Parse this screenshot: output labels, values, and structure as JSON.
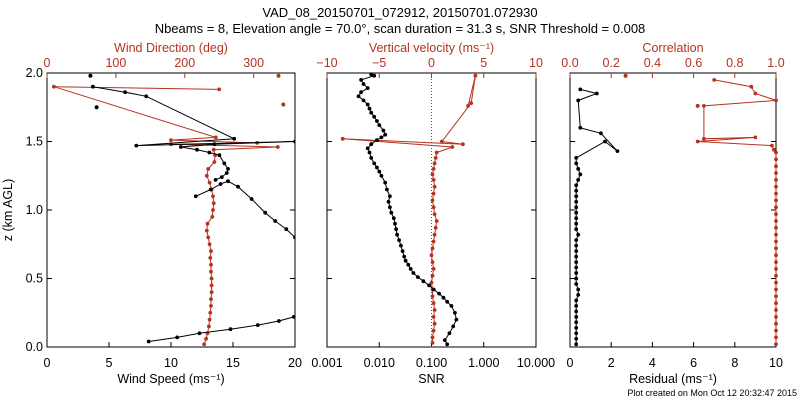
{
  "title_line1": "VAD_08_20150701_072912, 20150701.072930",
  "title_line2": "Nbeams = 8, Elevation angle = 70.0°, scan duration = 31.3 s, SNR Threshold = 0.008",
  "footer": "Plot created on Mon Oct 12 20:32:47 2015",
  "colors": {
    "black": "#000000",
    "red": "#b5331f",
    "axis": "#000000"
  },
  "chart_data": [
    {
      "type": "line",
      "ylabel": "z (km AGL)",
      "ylim": [
        0,
        2
      ],
      "yticks": [
        "0.0",
        "0.5",
        "1.0",
        "1.5",
        "2.0"
      ],
      "xlabel": "Wind Speed (ms⁻¹)",
      "xlim": [
        0,
        20
      ],
      "xticks": [
        "0",
        "5",
        "10",
        "15",
        "20"
      ],
      "top_xlabel": "Wind Direction (deg)",
      "top_xlim": [
        0,
        360
      ],
      "top_xticks": [
        "0",
        "100",
        "200",
        "300"
      ],
      "series": [
        {
          "color": "black",
          "axis": "bottom",
          "x": [
            8.2,
            10.5,
            12.3,
            14.8,
            17.0,
            18.7,
            19.9
          ],
          "y": [
            0.04,
            0.07,
            0.1,
            0.13,
            0.16,
            0.19,
            0.22
          ]
        },
        {
          "color": "black",
          "axis": "bottom",
          "x": [
            12.0,
            13.2,
            14.0,
            14.6,
            15.4,
            16.5,
            17.6,
            18.4,
            19.3,
            20.0
          ],
          "y": [
            1.1,
            1.15,
            1.19,
            1.21,
            1.17,
            1.08,
            0.98,
            0.92,
            0.86,
            0.8
          ]
        },
        {
          "color": "black",
          "axis": "bottom",
          "x": [
            13.6,
            14.1,
            14.5,
            14.6,
            14.3,
            13.9,
            13.1,
            12.1,
            10.8,
            13.5,
            20.0,
            7.2,
            15.1,
            8.0,
            6.3,
            3.7
          ],
          "y": [
            1.22,
            1.24,
            1.27,
            1.3,
            1.34,
            1.4,
            1.42,
            1.44,
            1.46,
            1.48,
            1.5,
            1.47,
            1.52,
            1.83,
            1.86,
            1.9
          ]
        }
      ],
      "markers": [
        {
          "color": "black",
          "axis": "bottom",
          "x": [
            3.5,
            4.0
          ],
          "y": [
            1.98,
            1.75
          ]
        },
        {
          "color": "red",
          "axis": "top",
          "x": [
            336,
            343
          ],
          "y": [
            1.98,
            1.77
          ]
        }
      ],
      "red_series": {
        "color": "red",
        "axis": "top",
        "x": [
          228,
          231,
          233,
          235,
          236,
          237,
          238,
          238,
          239,
          239,
          239,
          238,
          238,
          237,
          238,
          236,
          234,
          232,
          233,
          240,
          241,
          242,
          241,
          239,
          236,
          232,
          234,
          243,
          244,
          242,
          335,
          180,
          305,
          180,
          245,
          10,
          250
        ],
        "y": [
          0.02,
          0.06,
          0.1,
          0.15,
          0.2,
          0.25,
          0.3,
          0.35,
          0.4,
          0.45,
          0.5,
          0.55,
          0.6,
          0.65,
          0.7,
          0.75,
          0.8,
          0.85,
          0.9,
          0.95,
          1.0,
          1.05,
          1.1,
          1.15,
          1.2,
          1.25,
          1.3,
          1.35,
          1.4,
          1.44,
          1.46,
          1.48,
          1.49,
          1.51,
          1.53,
          1.9,
          1.88
        ]
      }
    },
    {
      "type": "line",
      "xlabel": "SNR",
      "xscale": "log",
      "xlim": [
        0.001,
        10
      ],
      "xticks": [
        "0.001",
        "0.010",
        "0.100",
        "1.000",
        "10.000"
      ],
      "top_xlabel": "Vertical velocity (ms⁻¹)",
      "top_xlim": [
        -10,
        10
      ],
      "top_xticks": [
        "−10",
        "−5",
        "0",
        "5",
        "10"
      ],
      "ylim": [
        0,
        2
      ],
      "snr": {
        "color": "black",
        "x": [
          0.2,
          0.18,
          0.22,
          0.26,
          0.3,
          0.28,
          0.24,
          0.2,
          0.17,
          0.14,
          0.11,
          0.09,
          0.07,
          0.055,
          0.045,
          0.04,
          0.036,
          0.032,
          0.03,
          0.028,
          0.026,
          0.024,
          0.022,
          0.021,
          0.02,
          0.019,
          0.017,
          0.016,
          0.015,
          0.016,
          0.014,
          0.013,
          0.011,
          0.01,
          0.009,
          0.008,
          0.007,
          0.0065,
          0.006,
          0.007,
          0.009,
          0.011,
          0.013,
          0.012,
          0.01,
          0.009,
          0.008,
          0.007,
          0.0065,
          0.006,
          0.005,
          0.004,
          0.0045,
          0.006,
          0.005,
          0.0045,
          0.008,
          0.007
        ],
        "y": [
          0.02,
          0.05,
          0.1,
          0.15,
          0.2,
          0.25,
          0.3,
          0.33,
          0.36,
          0.39,
          0.42,
          0.45,
          0.48,
          0.51,
          0.54,
          0.57,
          0.6,
          0.63,
          0.66,
          0.7,
          0.74,
          0.78,
          0.82,
          0.86,
          0.9,
          0.94,
          0.98,
          1.02,
          1.06,
          1.1,
          1.15,
          1.2,
          1.25,
          1.28,
          1.31,
          1.34,
          1.38,
          1.42,
          1.45,
          1.48,
          1.51,
          1.53,
          1.55,
          1.58,
          1.62,
          1.65,
          1.68,
          1.71,
          1.74,
          1.77,
          1.8,
          1.83,
          1.86,
          1.89,
          1.92,
          1.95,
          1.98,
          1.99
        ]
      },
      "w": {
        "color": "red",
        "axis": "top",
        "x": [
          0.1,
          0.1,
          0.2,
          0.3,
          0.2,
          0.3,
          0.2,
          0.1,
          0.1,
          0.0,
          0.1,
          0.2,
          0.1,
          0.0,
          0.1,
          0.2,
          0.3,
          0.4,
          0.5,
          0.3,
          0.2,
          0.1,
          0.2,
          0.3,
          0.2,
          0.1,
          0.2,
          0.3,
          0.4,
          0.5,
          2.0,
          -8.5,
          3.0,
          1.0,
          3.8,
          4.2,
          3.5
        ],
        "y": [
          0.03,
          0.07,
          0.12,
          0.17,
          0.22,
          0.27,
          0.32,
          0.37,
          0.42,
          0.47,
          0.52,
          0.57,
          0.62,
          0.67,
          0.72,
          0.77,
          0.82,
          0.87,
          0.92,
          0.97,
          1.02,
          1.07,
          1.12,
          1.17,
          1.22,
          1.26,
          1.3,
          1.34,
          1.38,
          1.42,
          1.46,
          1.52,
          1.48,
          1.5,
          1.78,
          1.98,
          1.76
        ]
      }
    },
    {
      "type": "line",
      "xlabel": "Residual (ms⁻¹)",
      "xlim": [
        0,
        10
      ],
      "xticks": [
        "0",
        "2",
        "4",
        "6",
        "8",
        "10"
      ],
      "top_xlabel": "Correlation",
      "top_xlim": [
        0,
        1
      ],
      "top_xticks": [
        "0.0",
        "0.2",
        "0.4",
        "0.6",
        "0.8",
        "1.0"
      ],
      "ylim": [
        0,
        2
      ],
      "residual": {
        "color": "black",
        "x": [
          0.3,
          0.3,
          0.3,
          0.3,
          0.3,
          0.3,
          0.3,
          0.3,
          0.3,
          0.4,
          0.4,
          0.3,
          0.3,
          0.3,
          0.3,
          0.3,
          0.3,
          0.3,
          0.3,
          0.3,
          0.4,
          0.3,
          0.3,
          0.3,
          0.3,
          0.3,
          0.3,
          0.3,
          0.3,
          0.3,
          0.4,
          0.5,
          0.4,
          0.3,
          0.3,
          1.7,
          2.3,
          1.5,
          0.5,
          0.4,
          1.3,
          0.5
        ],
        "y": [
          0.02,
          0.06,
          0.1,
          0.14,
          0.18,
          0.22,
          0.26,
          0.3,
          0.34,
          0.38,
          0.42,
          0.46,
          0.5,
          0.54,
          0.58,
          0.62,
          0.66,
          0.7,
          0.74,
          0.78,
          0.82,
          0.86,
          0.9,
          0.94,
          0.98,
          1.02,
          1.06,
          1.1,
          1.14,
          1.18,
          1.22,
          1.26,
          1.3,
          1.34,
          1.38,
          1.5,
          1.43,
          1.56,
          1.6,
          1.8,
          1.85,
          1.88
        ]
      },
      "correlation": {
        "color": "red",
        "axis": "top",
        "x": [
          1.0,
          1.0,
          1.0,
          1.0,
          1.0,
          1.0,
          1.0,
          1.0,
          1.0,
          1.0,
          1.0,
          1.0,
          1.0,
          1.0,
          1.0,
          1.0,
          1.0,
          1.0,
          1.0,
          1.0,
          1.0,
          1.0,
          1.0,
          1.0,
          1.0,
          1.0,
          1.0,
          1.0,
          1.0,
          0.99,
          0.98,
          0.62,
          0.9,
          0.65,
          0.65,
          1.0,
          0.9,
          0.88,
          0.7
        ],
        "y": [
          0.02,
          0.07,
          0.12,
          0.17,
          0.22,
          0.27,
          0.32,
          0.37,
          0.42,
          0.47,
          0.52,
          0.57,
          0.62,
          0.67,
          0.72,
          0.77,
          0.82,
          0.87,
          0.92,
          0.97,
          1.02,
          1.07,
          1.12,
          1.17,
          1.22,
          1.27,
          1.32,
          1.37,
          1.42,
          1.44,
          1.47,
          1.5,
          1.53,
          1.52,
          1.76,
          1.8,
          1.85,
          1.9,
          1.95
        ]
      },
      "markers": [
        {
          "color": "red",
          "axis": "top",
          "x": [
            0.27,
            0.62
          ],
          "y": [
            1.98,
            1.76
          ]
        }
      ]
    }
  ]
}
